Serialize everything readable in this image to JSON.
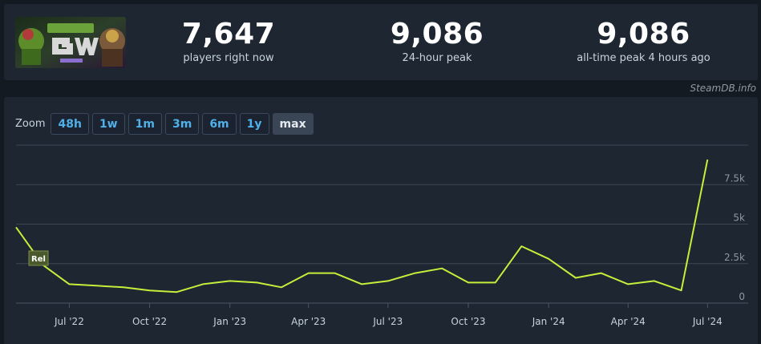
{
  "header": {
    "game_art_icon": "game-capsule-art",
    "stats": [
      {
        "value": "7,647",
        "label": "players right now"
      },
      {
        "value": "9,086",
        "label": "24-hour peak"
      },
      {
        "value": "9,086",
        "label": "all-time peak 4 hours ago"
      }
    ]
  },
  "credit": "SteamDB.info",
  "zoom": {
    "label": "Zoom",
    "buttons": [
      "48h",
      "1w",
      "1m",
      "3m",
      "6m",
      "1y",
      "max"
    ],
    "active": "max"
  },
  "colors": {
    "line": "#c4ef3b",
    "button_text": "#4fb0ea",
    "panel_bg": "#1e2631",
    "page_bg": "#141a22"
  },
  "chart_data": {
    "type": "line",
    "x_axis": "date",
    "xlim": [
      "2022-05-01",
      "2024-07-20"
    ],
    "ylim": [
      0,
      10000
    ],
    "grid": true,
    "y_axis_side": "right",
    "y_ticks": [
      {
        "value": 0,
        "label": "0"
      },
      {
        "value": 2500,
        "label": "2.5k"
      },
      {
        "value": 5000,
        "label": "5k"
      },
      {
        "value": 7500,
        "label": "7.5k"
      }
    ],
    "x_ticks": [
      {
        "date": "2022-07-01",
        "label": "Jul '22"
      },
      {
        "date": "2022-10-01",
        "label": "Oct '22"
      },
      {
        "date": "2023-01-01",
        "label": "Jan '23"
      },
      {
        "date": "2023-04-01",
        "label": "Apr '23"
      },
      {
        "date": "2023-07-01",
        "label": "Jul '23"
      },
      {
        "date": "2023-10-01",
        "label": "Oct '23"
      },
      {
        "date": "2024-01-01",
        "label": "Jan '24"
      },
      {
        "date": "2024-04-01",
        "label": "Apr '24"
      },
      {
        "date": "2024-07-01",
        "label": "Jul '24"
      }
    ],
    "series": [
      {
        "points": [
          {
            "x": "2022-05-01",
            "y": 4800
          },
          {
            "x": "2022-06-01",
            "y": 2400
          },
          {
            "x": "2022-07-01",
            "y": 1200
          },
          {
            "x": "2022-08-01",
            "y": 1100
          },
          {
            "x": "2022-09-01",
            "y": 1000
          },
          {
            "x": "2022-10-01",
            "y": 800
          },
          {
            "x": "2022-11-01",
            "y": 700
          },
          {
            "x": "2022-12-01",
            "y": 1200
          },
          {
            "x": "2023-01-01",
            "y": 1400
          },
          {
            "x": "2023-02-01",
            "y": 1300
          },
          {
            "x": "2023-03-01",
            "y": 1000
          },
          {
            "x": "2023-04-01",
            "y": 1900
          },
          {
            "x": "2023-05-01",
            "y": 1900
          },
          {
            "x": "2023-06-01",
            "y": 1200
          },
          {
            "x": "2023-07-01",
            "y": 1400
          },
          {
            "x": "2023-08-01",
            "y": 1900
          },
          {
            "x": "2023-09-01",
            "y": 2200
          },
          {
            "x": "2023-10-01",
            "y": 1300
          },
          {
            "x": "2023-11-01",
            "y": 1300
          },
          {
            "x": "2023-12-01",
            "y": 3600
          },
          {
            "x": "2024-01-01",
            "y": 2800
          },
          {
            "x": "2024-02-01",
            "y": 1600
          },
          {
            "x": "2024-03-01",
            "y": 1900
          },
          {
            "x": "2024-04-01",
            "y": 1200
          },
          {
            "x": "2024-05-01",
            "y": 1400
          },
          {
            "x": "2024-06-01",
            "y": 800
          },
          {
            "x": "2024-07-01",
            "y": 9086
          }
        ]
      }
    ],
    "annotations": [
      {
        "label": "Rel",
        "date": "2022-05-01"
      }
    ]
  }
}
